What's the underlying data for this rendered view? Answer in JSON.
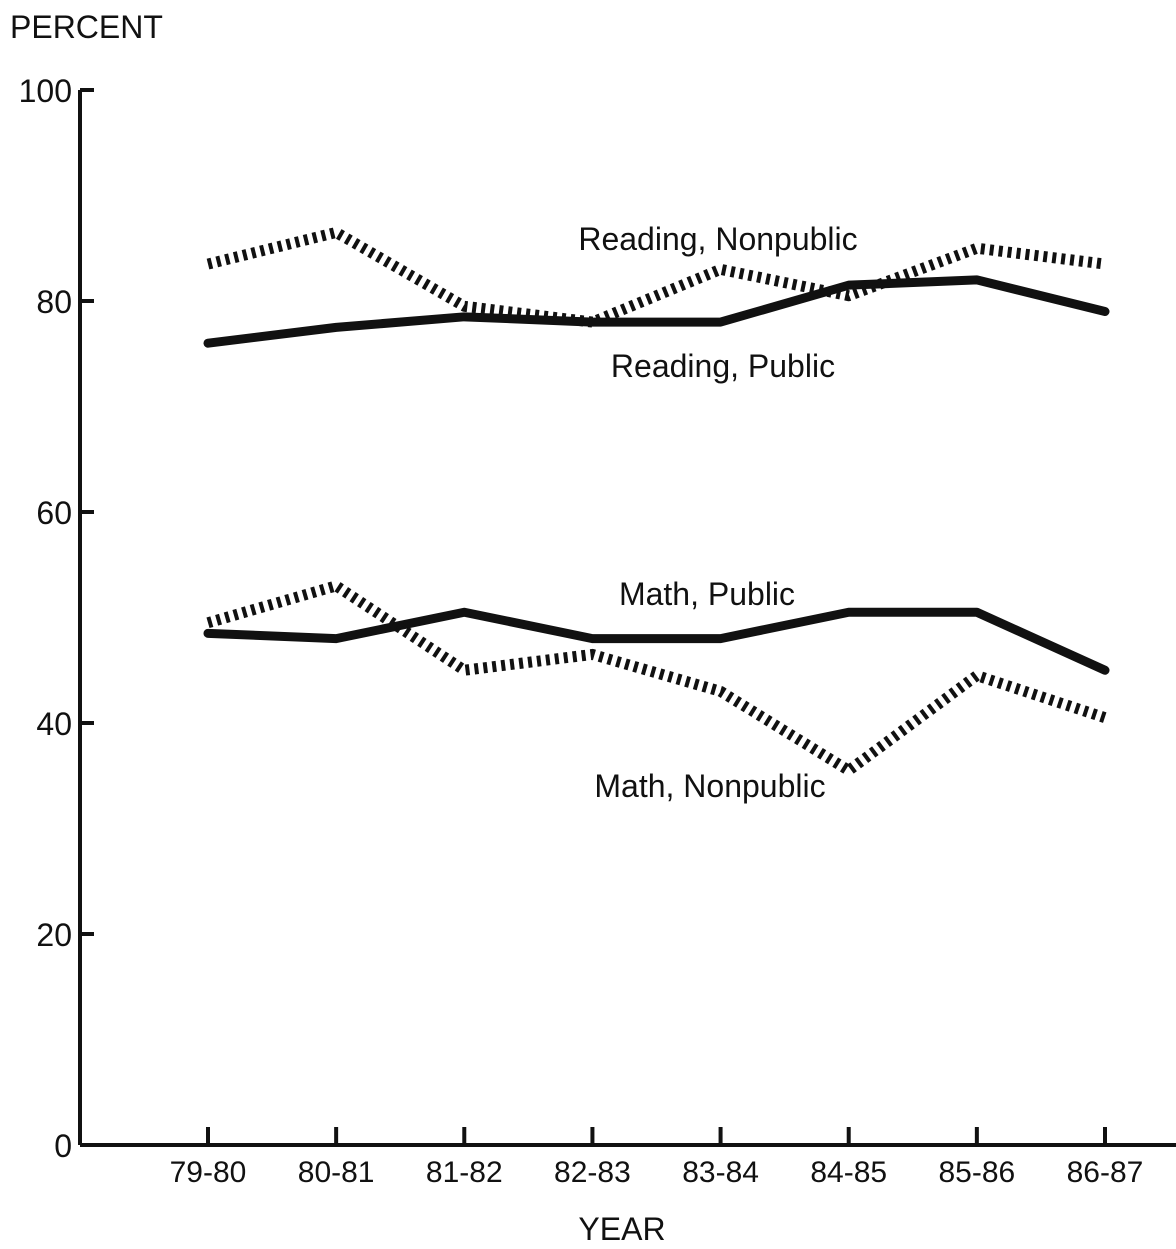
{
  "chart_data": {
    "type": "line",
    "title": "",
    "ylabel": "PERCENT",
    "xlabel": "YEAR",
    "ylim": [
      0,
      100
    ],
    "yticks": [
      0,
      20,
      40,
      60,
      80,
      100
    ],
    "grid": false,
    "categories": [
      "79-80",
      "80-81",
      "81-82",
      "82-83",
      "83-84",
      "84-85",
      "85-86",
      "86-87"
    ],
    "series": [
      {
        "name": "Reading, Nonpublic",
        "style": "dotted",
        "color": "#111111",
        "values": [
          83.5,
          86.5,
          79.5,
          78,
          83,
          80.5,
          85,
          83.5
        ]
      },
      {
        "name": "Reading, Public",
        "style": "solid",
        "color": "#111111",
        "values": [
          76,
          77.5,
          78.5,
          78,
          78,
          81.5,
          82,
          79
        ]
      },
      {
        "name": "Math, Public",
        "style": "solid",
        "color": "#111111",
        "values": [
          48.5,
          48,
          50.5,
          48,
          48,
          50.5,
          50.5,
          45
        ]
      },
      {
        "name": "Math, Nonpublic",
        "style": "dotted",
        "color": "#111111",
        "values": [
          49.5,
          53,
          45,
          46.5,
          43,
          35.5,
          44.5,
          40.5
        ]
      }
    ]
  }
}
